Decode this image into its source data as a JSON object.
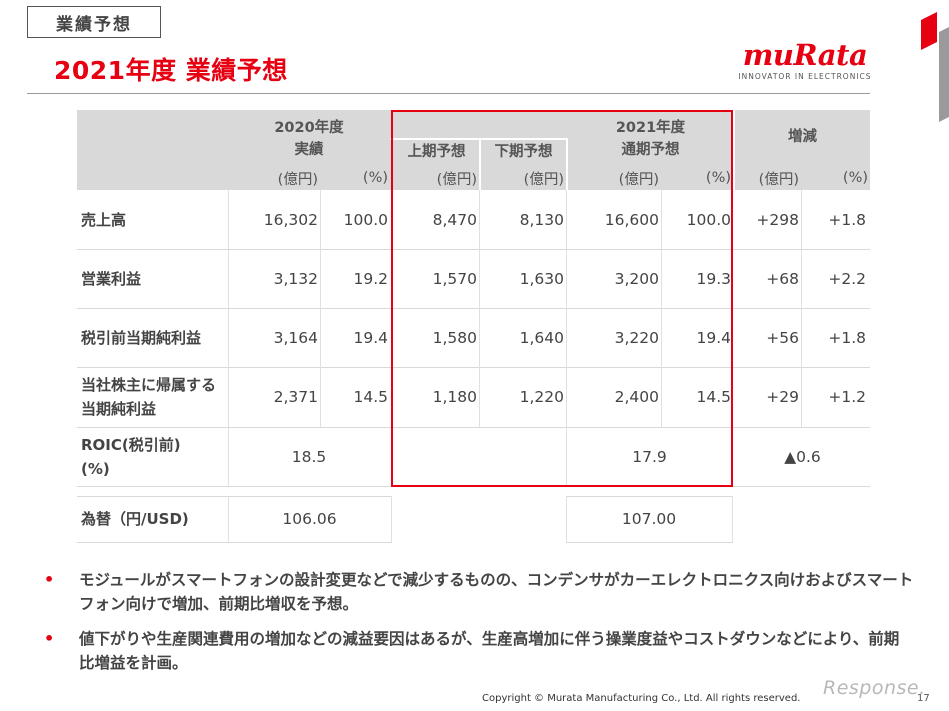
{
  "section_tag": "業績予想",
  "title": "2021年度 業績予想",
  "logo": {
    "wordmark": "muRata",
    "tagline": "INNOVATOR IN ELECTRONICS"
  },
  "table": {
    "headers": {
      "fy2020_line1": "2020年度",
      "fy2020_line2": "実績",
      "fy2021": "2021年度",
      "first_half": "上期予想",
      "second_half": "下期予想",
      "full_year": "通期予想",
      "change": "増減"
    },
    "units": [
      "(億円)",
      "(%)",
      "(億円)",
      "(億円)",
      "(億円)",
      "(%)",
      "(億円)",
      "(%)"
    ],
    "rows": [
      {
        "label": "売上高",
        "values": [
          "16,302",
          "100.0",
          "8,470",
          "8,130",
          "16,600",
          "100.0",
          "+298",
          "+1.8"
        ]
      },
      {
        "label": "営業利益",
        "values": [
          "3,132",
          "19.2",
          "1,570",
          "1,630",
          "3,200",
          "19.3",
          "+68",
          "+2.2"
        ]
      },
      {
        "label": "税引前当期純利益",
        "values": [
          "3,164",
          "19.4",
          "1,580",
          "1,640",
          "3,220",
          "19.4",
          "+56",
          "+1.8"
        ]
      },
      {
        "label_line1": "当社株主に帰属する",
        "label_line2": "当期純利益",
        "values": [
          "2,371",
          "14.5",
          "1,180",
          "1,220",
          "2,400",
          "14.5",
          "+29",
          "+1.2"
        ]
      }
    ],
    "roic": {
      "label_line1": "ROIC(税引前)",
      "label_line2": "(%)",
      "fy2020": "18.5",
      "fy2021": "17.9",
      "change": "▲0.6"
    },
    "fx": {
      "label": "為替（円/USD)",
      "fy2020": "106.06",
      "fy2021": "107.00"
    }
  },
  "bullets": [
    "モジュールがスマートフォンの設計変更などで減少するものの、コンデンサがカーエレクトロニクス向けおよびスマートフォン向けで増加、前期比増収を予想。",
    "値下がりや生産関連費用の増加などの減益要因はあるが、生産高増加に伴う操業度益やコストダウンなどにより、前期比増益を計画。"
  ],
  "copyright": "Copyright © Murata Manufacturing Co., Ltd. All rights reserved.",
  "page_number": "17",
  "watermark": "Response.",
  "colors": {
    "accent": "#e60012",
    "header_bg": "#d9d9d9"
  }
}
